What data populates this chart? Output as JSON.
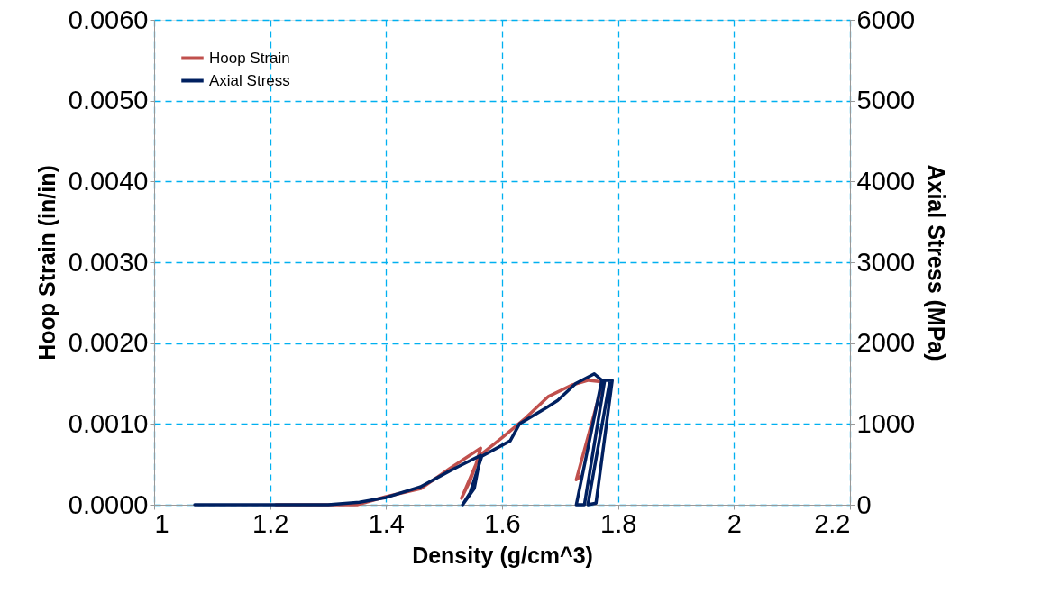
{
  "chart_data": {
    "type": "line",
    "xlabel": "Density (g/cm^3)",
    "ylabel": "Hoop Strain (in/in)",
    "y2label": "Axial Stress (MPa)",
    "xlim": [
      1,
      2.2
    ],
    "xticks": [
      1,
      1.2,
      1.4,
      1.6,
      1.8,
      2,
      2.2
    ],
    "ylim": [
      0,
      0.006
    ],
    "yticks": [
      {
        "value": 0,
        "label": "0.0000"
      },
      {
        "value": 0.001,
        "label": "0.0010"
      },
      {
        "value": 0.002,
        "label": "0.0020"
      },
      {
        "value": 0.003,
        "label": "0.0030"
      },
      {
        "value": 0.004,
        "label": "0.0040"
      },
      {
        "value": 0.005,
        "label": "0.0050"
      },
      {
        "value": 0.006,
        "label": "0.0060"
      }
    ],
    "y2lim": [
      0,
      6000
    ],
    "y2ticks": [
      0,
      1000,
      2000,
      3000,
      4000,
      5000,
      6000
    ],
    "grid": true,
    "legend": "top left",
    "marker": "none",
    "line_style": "solid",
    "series": [
      {
        "name": "Hoop Strain",
        "color": "#c0504d",
        "x": [
          1.21,
          1.3,
          1.35,
          1.4,
          1.46,
          1.51,
          1.563,
          1.555,
          1.53,
          1.545,
          1.56,
          1.6,
          1.64,
          1.68,
          1.72,
          1.749,
          1.774,
          1.728,
          1.735
        ],
        "values": [
          0,
          0,
          0,
          0.0001,
          0.0002,
          0.00045,
          0.0007,
          0.0005,
          8e-05,
          0.0003,
          0.0006,
          0.00083,
          0.00107,
          0.00134,
          0.00148,
          0.00154,
          0.00152,
          0.00031,
          0.00035
        ]
      },
      {
        "name": "Axial Stress",
        "color": "#002060",
        "axis": "y2",
        "x": [
          1.07,
          1.3,
          1.354,
          1.4,
          1.459,
          1.51,
          1.563,
          1.552,
          1.532,
          1.545,
          1.565,
          1.614,
          1.63,
          1.676,
          1.696,
          1.727,
          1.759,
          1.772,
          1.728,
          1.742,
          1.777,
          1.79,
          1.762,
          1.748,
          1.785
        ],
        "values": [
          0,
          0,
          30,
          90,
          220,
          420,
          610,
          200,
          0,
          150,
          600,
          790,
          1000,
          1200,
          1290,
          1500,
          1620,
          1540,
          0,
          0,
          1540,
          1540,
          20,
          0,
          1500
        ]
      }
    ]
  }
}
